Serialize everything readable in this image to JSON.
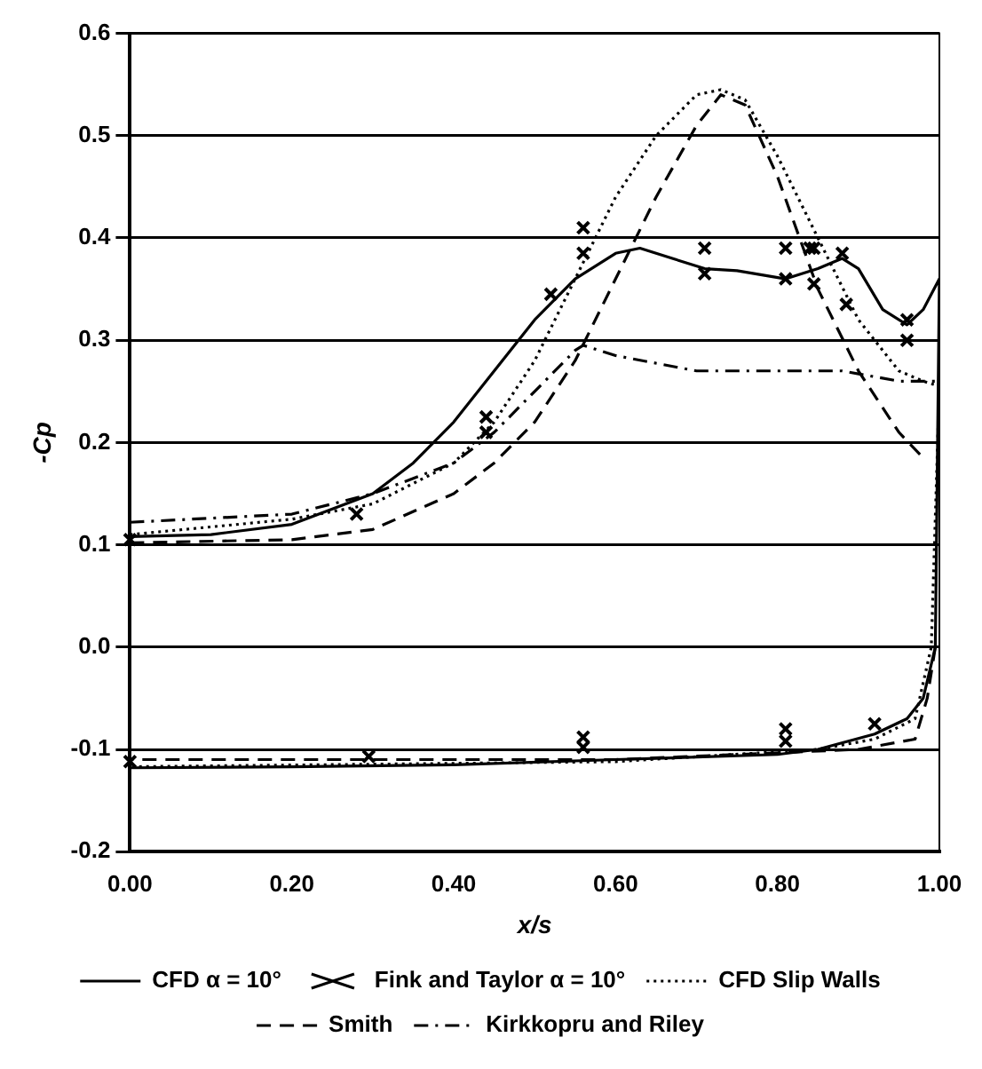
{
  "chart_data": {
    "type": "line",
    "xlabel": "x/s",
    "ylabel": "-Cp",
    "xlim": [
      0,
      1
    ],
    "xticks": [
      {
        "value": 0,
        "label": "0.00"
      },
      {
        "value": 0.2,
        "label": "0.20"
      },
      {
        "value": 0.4,
        "label": "0.40"
      },
      {
        "value": 0.6,
        "label": "0.60"
      },
      {
        "value": 0.8,
        "label": "0.80"
      },
      {
        "value": 1,
        "label": "1.00"
      }
    ],
    "ylim": [
      -0.2,
      0.6
    ],
    "yticks": [
      {
        "value": -0.2,
        "label": "-0.2"
      },
      {
        "value": -0.1,
        "label": "-0.1"
      },
      {
        "value": 0,
        "label": "0.0"
      },
      {
        "value": 0.1,
        "label": "0.1"
      },
      {
        "value": 0.2,
        "label": "0.2"
      },
      {
        "value": 0.3,
        "label": "0.3"
      },
      {
        "value": 0.4,
        "label": "0.4"
      },
      {
        "value": 0.5,
        "label": "0.5"
      },
      {
        "value": 0.6,
        "label": "0.6"
      }
    ],
    "grid": "y",
    "legend": "bottom",
    "marker": "none",
    "series": [
      {
        "name": "CFD α = 10°",
        "line_style": "solid",
        "color": "#000000",
        "x": [
          0,
          0.1,
          0.2,
          0.3,
          0.35,
          0.4,
          0.45,
          0.5,
          0.55,
          0.6,
          0.63,
          0.67,
          0.71,
          0.75,
          0.81,
          0.85,
          0.88,
          0.9,
          0.93,
          0.96,
          0.98,
          1,
          0.995,
          0.98,
          0.96,
          0.92,
          0.85,
          0.8,
          0.6,
          0.4,
          0.2,
          0
        ],
        "values": [
          0.108,
          0.11,
          0.12,
          0.15,
          0.18,
          0.22,
          0.27,
          0.32,
          0.36,
          0.385,
          0.39,
          0.38,
          0.37,
          0.368,
          0.36,
          0.37,
          0.38,
          0.37,
          0.33,
          0.315,
          0.33,
          0.36,
          0,
          -0.05,
          -0.07,
          -0.085,
          -0.1,
          -0.105,
          -0.11,
          -0.115,
          -0.117,
          -0.118
        ]
      },
      {
        "name": "Fink and Taylor α = 10°",
        "type": "scatter",
        "marker": "cross",
        "color": "#000000",
        "x": [
          0,
          0.28,
          0.44,
          0.44,
          0.52,
          0.56,
          0.56,
          0.71,
          0.71,
          0.81,
          0.81,
          0.84,
          0.845,
          0.845,
          0.88,
          0.885,
          0.96,
          0.96,
          0,
          0.295,
          0.56,
          0.56,
          0.81,
          0.81,
          0.92
        ],
        "values": [
          0.105,
          0.13,
          0.225,
          0.21,
          0.345,
          0.41,
          0.385,
          0.39,
          0.365,
          0.39,
          0.36,
          0.39,
          0.39,
          0.355,
          0.385,
          0.335,
          0.32,
          0.3,
          -0.112,
          -0.107,
          -0.088,
          -0.098,
          -0.08,
          -0.092,
          -0.075
        ]
      },
      {
        "name": "CFD Slip Walls",
        "line_style": "dotted",
        "color": "#000000",
        "x": [
          0,
          0.2,
          0.3,
          0.4,
          0.45,
          0.5,
          0.55,
          0.6,
          0.65,
          0.7,
          0.73,
          0.76,
          0.8,
          0.85,
          0.9,
          0.95,
          0.98,
          1,
          0.99,
          0.97,
          0.92,
          0.85,
          0.6,
          0
        ],
        "values": [
          0.11,
          0.125,
          0.14,
          0.18,
          0.22,
          0.28,
          0.36,
          0.44,
          0.5,
          0.54,
          0.545,
          0.535,
          0.48,
          0.4,
          0.32,
          0.27,
          0.26,
          0.255,
          0,
          -0.07,
          -0.09,
          -0.1,
          -0.112,
          -0.117
        ]
      },
      {
        "name": "Smith",
        "line_style": "dashed",
        "color": "#000000",
        "x": [
          0,
          0.2,
          0.3,
          0.4,
          0.45,
          0.5,
          0.55,
          0.6,
          0.65,
          0.7,
          0.73,
          0.76,
          0.8,
          0.85,
          0.9,
          0.95,
          0.98,
          0.99,
          0.995,
          0.985,
          0.97,
          0.9,
          0.6,
          0
        ],
        "values": [
          0.102,
          0.105,
          0.115,
          0.15,
          0.18,
          0.22,
          0.28,
          0.36,
          0.44,
          0.51,
          0.54,
          0.53,
          0.46,
          0.35,
          0.27,
          0.21,
          0.185,
          null,
          0,
          -0.05,
          -0.09,
          -0.1,
          -0.11,
          -0.11
        ]
      },
      {
        "name": "Kirkkopru and Riley",
        "line_style": "dashdot",
        "color": "#000000",
        "x": [
          0,
          0.2,
          0.3,
          0.4,
          0.45,
          0.5,
          0.55,
          0.56,
          0.6,
          0.7,
          0.8,
          0.88,
          0.95,
          1
        ],
        "values": [
          0.122,
          0.13,
          0.15,
          0.18,
          0.21,
          0.25,
          0.29,
          0.295,
          0.285,
          0.27,
          0.27,
          0.27,
          0.26,
          0.26
        ]
      }
    ]
  }
}
